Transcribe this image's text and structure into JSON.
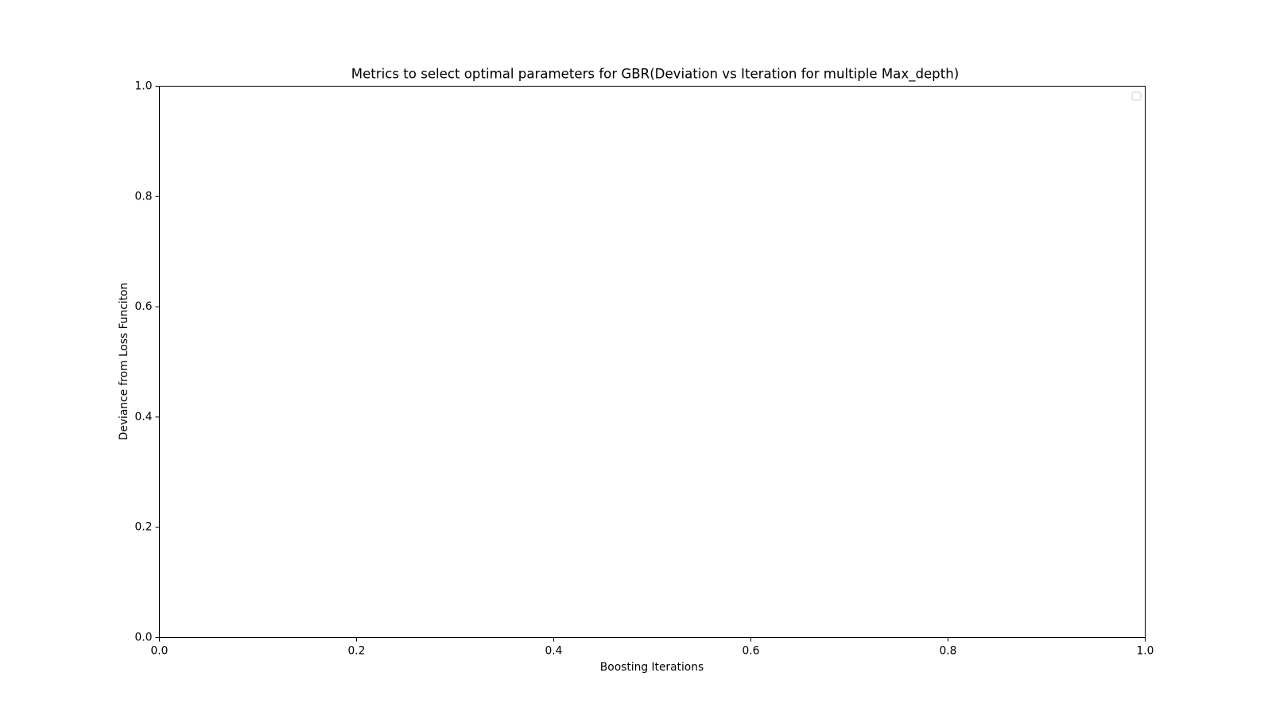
{
  "chart_data": {
    "type": "line",
    "title": "Metrics to select optimal parameters for GBR(Deviation vs Iteration for multiple Max_depth)",
    "xlabel": "Boosting Iterations",
    "ylabel": "Deviance from Loss Funciton",
    "xlim": [
      0.0,
      1.0
    ],
    "ylim": [
      0.0,
      1.0
    ],
    "x_ticks": [
      "0.0",
      "0.2",
      "0.4",
      "0.6",
      "0.8",
      "1.0"
    ],
    "y_ticks": [
      "0.0",
      "0.2",
      "0.4",
      "0.6",
      "0.8",
      "1.0"
    ],
    "series": [],
    "grid": false,
    "legend": {
      "placement": "upper right",
      "entries": []
    }
  },
  "colors": {
    "axes": "#000000",
    "legend_border": "#cccccc",
    "background": "#ffffff"
  }
}
